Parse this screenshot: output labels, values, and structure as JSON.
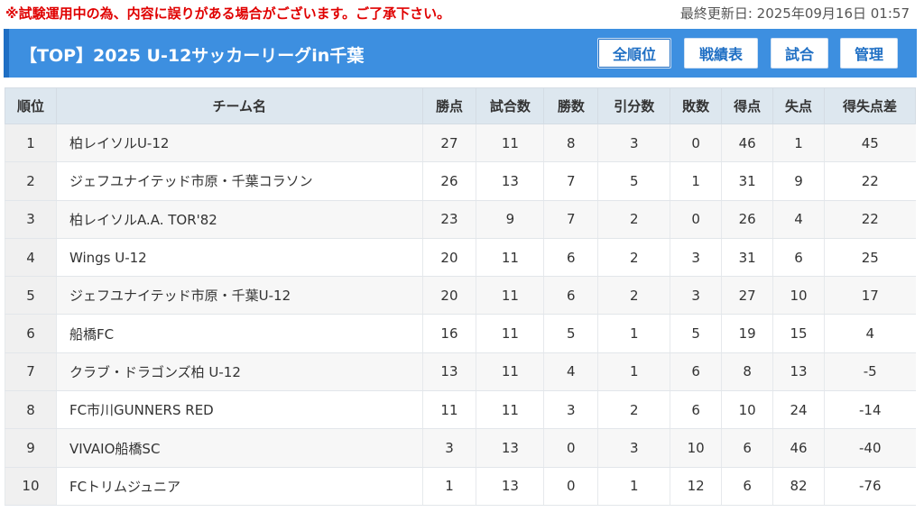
{
  "notice": "※試験運用中の為、内容に誤りがある場合がございます。ご了承下さい。",
  "updated": "最終更新日: 2025年09月16日 01:57",
  "header": {
    "title": "【TOP】2025 U-12サッカーリーグin千葉",
    "nav": [
      "全順位",
      "戦績表",
      "試合",
      "管理"
    ]
  },
  "table": {
    "columns": [
      "順位",
      "チーム名",
      "勝点",
      "試合数",
      "勝数",
      "引分数",
      "敗数",
      "得点",
      "失点",
      "得失点差"
    ],
    "rows": [
      [
        "1",
        "柏レイソルU-12",
        "27",
        "11",
        "8",
        "3",
        "0",
        "46",
        "1",
        "45"
      ],
      [
        "2",
        "ジェフユナイテッド市原・千葉コラソン",
        "26",
        "13",
        "7",
        "5",
        "1",
        "31",
        "9",
        "22"
      ],
      [
        "3",
        "柏レイソルA.A. TOR'82",
        "23",
        "9",
        "7",
        "2",
        "0",
        "26",
        "4",
        "22"
      ],
      [
        "4",
        "Wings U-12",
        "20",
        "11",
        "6",
        "2",
        "3",
        "31",
        "6",
        "25"
      ],
      [
        "5",
        "ジェフユナイテッド市原・千葉U-12",
        "20",
        "11",
        "6",
        "2",
        "3",
        "27",
        "10",
        "17"
      ],
      [
        "6",
        "船橋FC",
        "16",
        "11",
        "5",
        "1",
        "5",
        "19",
        "15",
        "4"
      ],
      [
        "7",
        "クラブ・ドラゴンズ柏 U-12",
        "13",
        "11",
        "4",
        "1",
        "6",
        "8",
        "13",
        "-5"
      ],
      [
        "8",
        "FC市川GUNNERS RED",
        "11",
        "11",
        "3",
        "2",
        "6",
        "10",
        "24",
        "-14"
      ],
      [
        "9",
        "VIVAIO船橋SC",
        "3",
        "13",
        "0",
        "3",
        "10",
        "6",
        "46",
        "-40"
      ],
      [
        "10",
        "FCトリムジュニア",
        "1",
        "13",
        "0",
        "1",
        "12",
        "6",
        "82",
        "-76"
      ]
    ]
  }
}
